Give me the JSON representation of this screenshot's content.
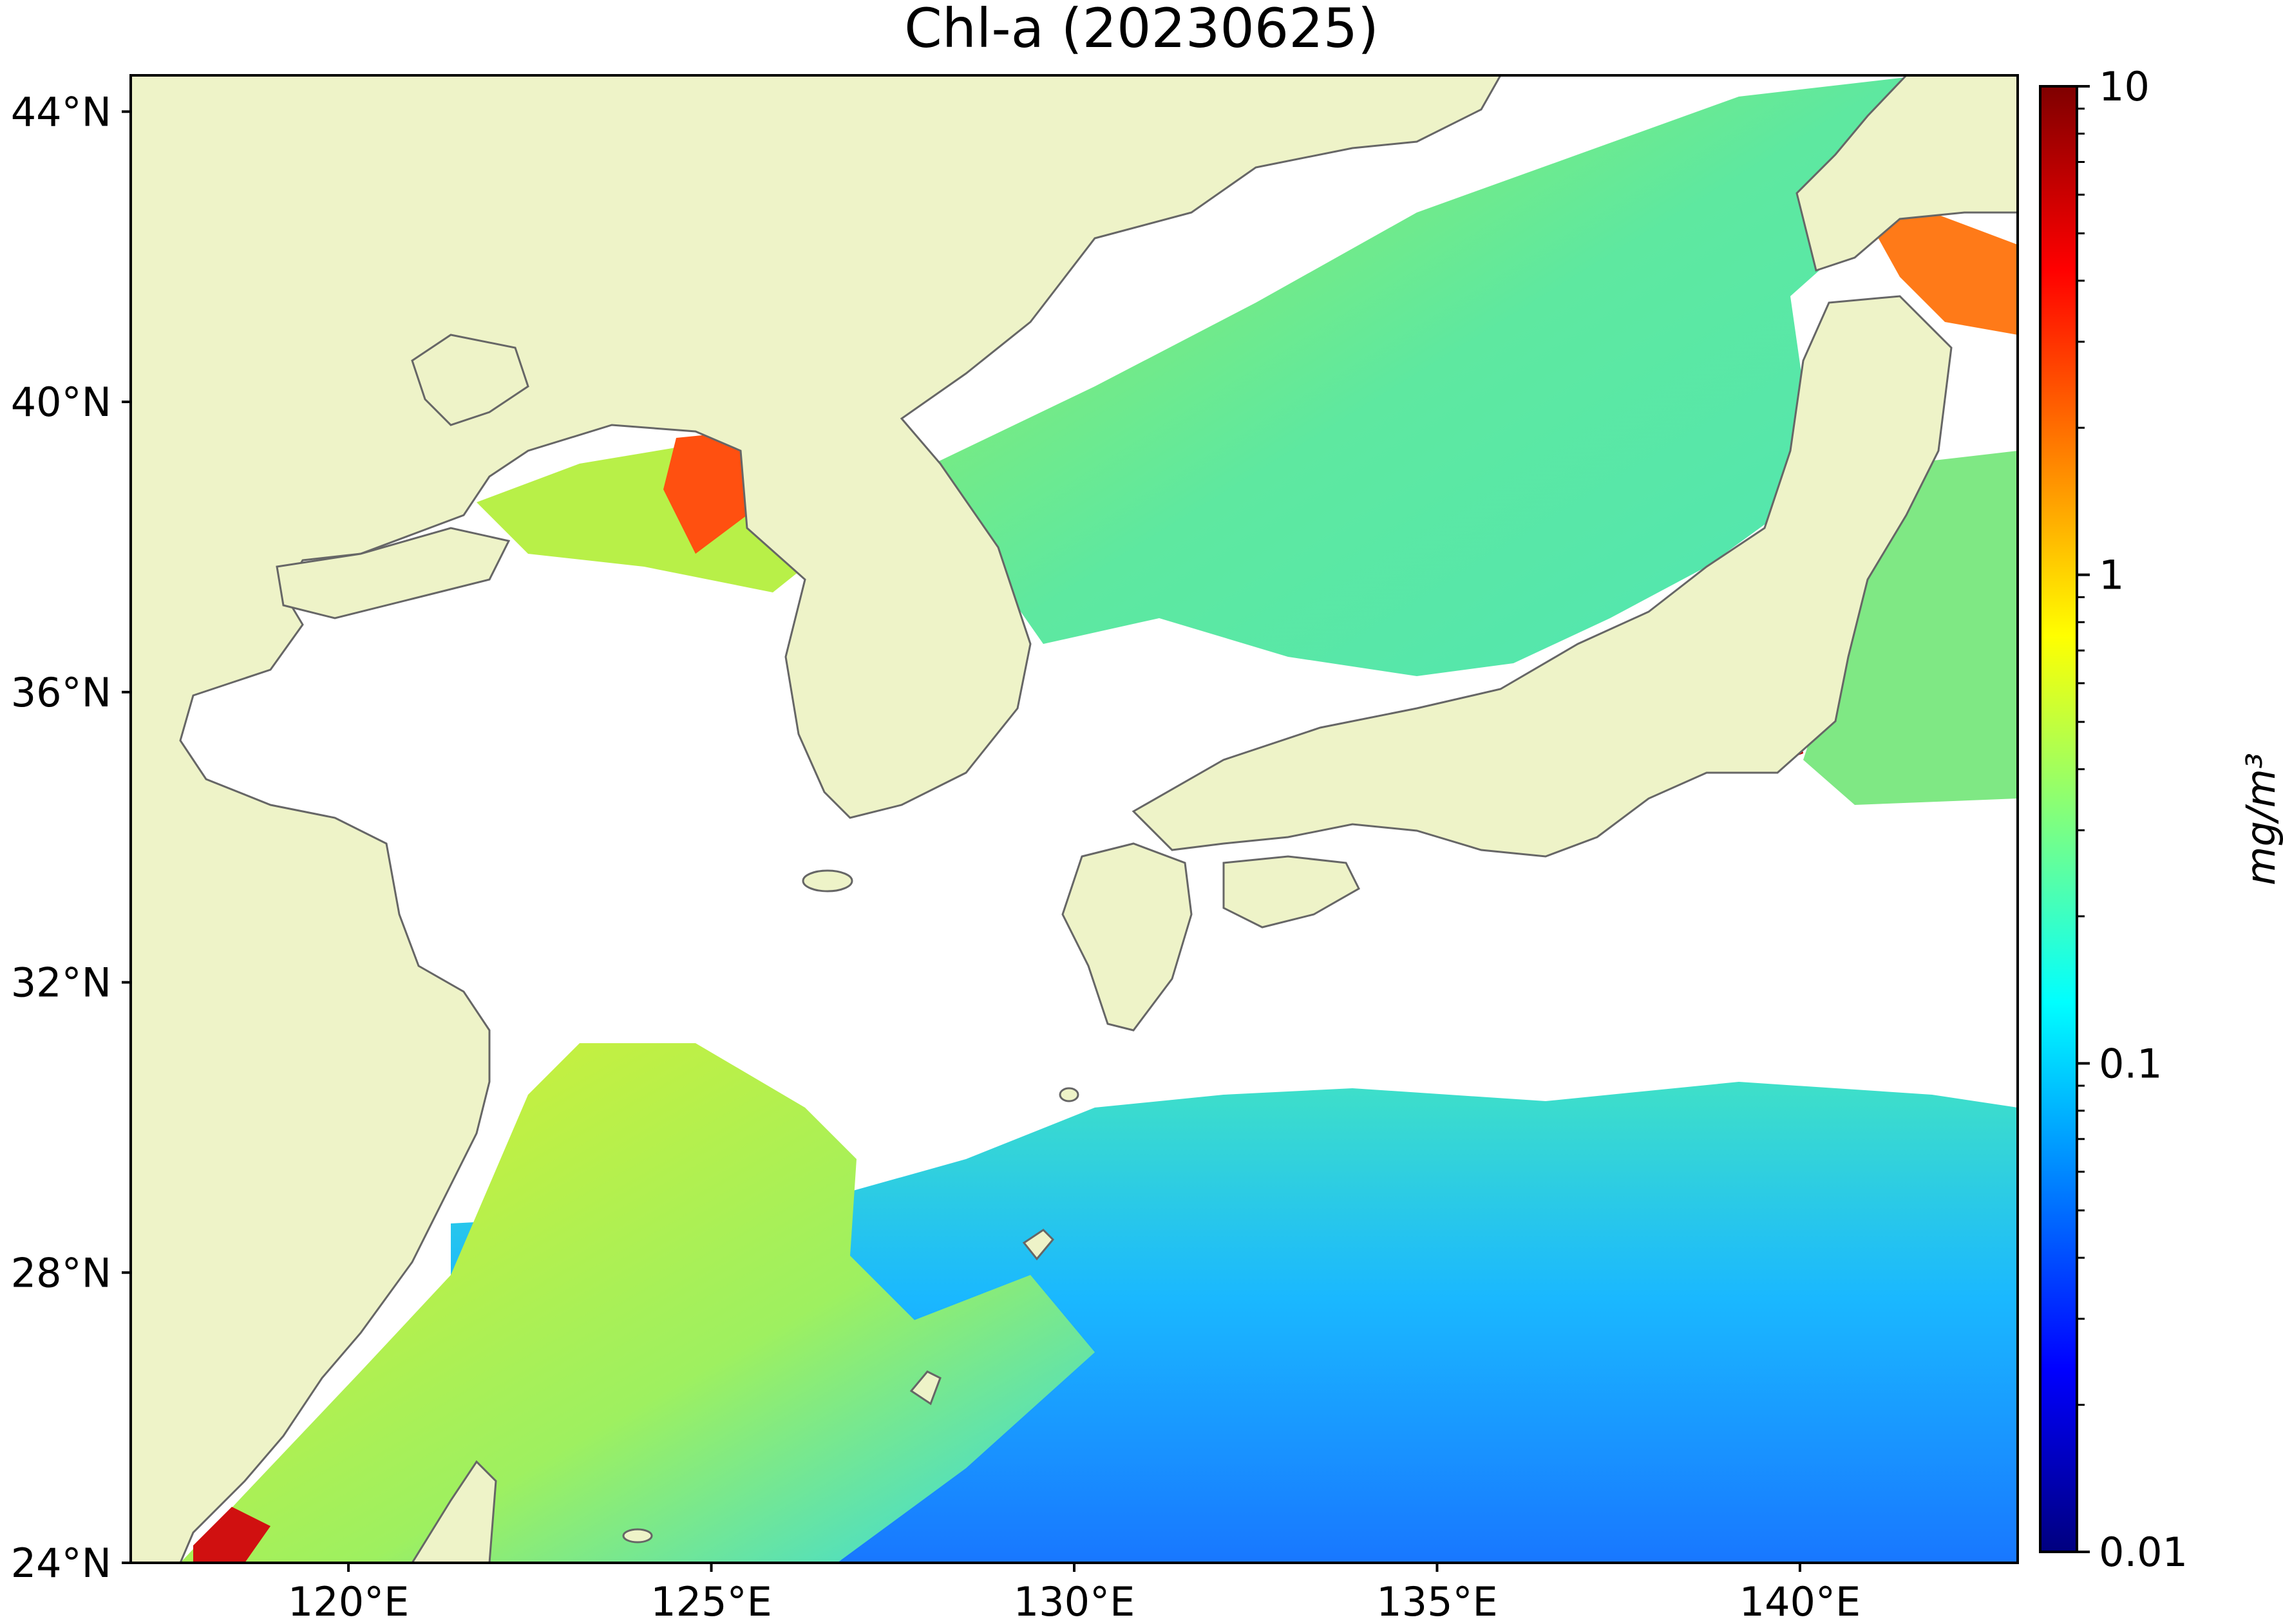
{
  "title": "Chl-a (20230625)",
  "map": {
    "lon_range": [
      117,
      143
    ],
    "lat_range": [
      24,
      44.5
    ],
    "lon_ticks": [
      {
        "value": 120,
        "label": "120°E"
      },
      {
        "value": 125,
        "label": "125°E"
      },
      {
        "value": 130,
        "label": "130°E"
      },
      {
        "value": 135,
        "label": "135°E"
      },
      {
        "value": 140,
        "label": "140°E"
      }
    ],
    "lat_ticks": [
      {
        "value": 44,
        "label": "44°N"
      },
      {
        "value": 40,
        "label": "40°N"
      },
      {
        "value": 36,
        "label": "36°N"
      },
      {
        "value": 32,
        "label": "32°N"
      },
      {
        "value": 28,
        "label": "28°N"
      },
      {
        "value": 24,
        "label": "24°N"
      }
    ],
    "land_color": "#eef3c8",
    "missing_color": "#ffffff",
    "coast_color": "#666666"
  },
  "colorbar": {
    "label": "mg/m³",
    "scale": "log",
    "range": [
      0.01,
      10
    ],
    "ticks": [
      {
        "value": 10,
        "label": "10"
      },
      {
        "value": 1,
        "label": "1"
      },
      {
        "value": 0.1,
        "label": "0.1"
      },
      {
        "value": 0.01,
        "label": "0.01"
      }
    ],
    "colormap": "jet",
    "colors": [
      "#00007f",
      "#0000ff",
      "#007fff",
      "#00ffff",
      "#7fff7f",
      "#ffff00",
      "#ff7f00",
      "#ff0000",
      "#7f0000"
    ]
  }
}
